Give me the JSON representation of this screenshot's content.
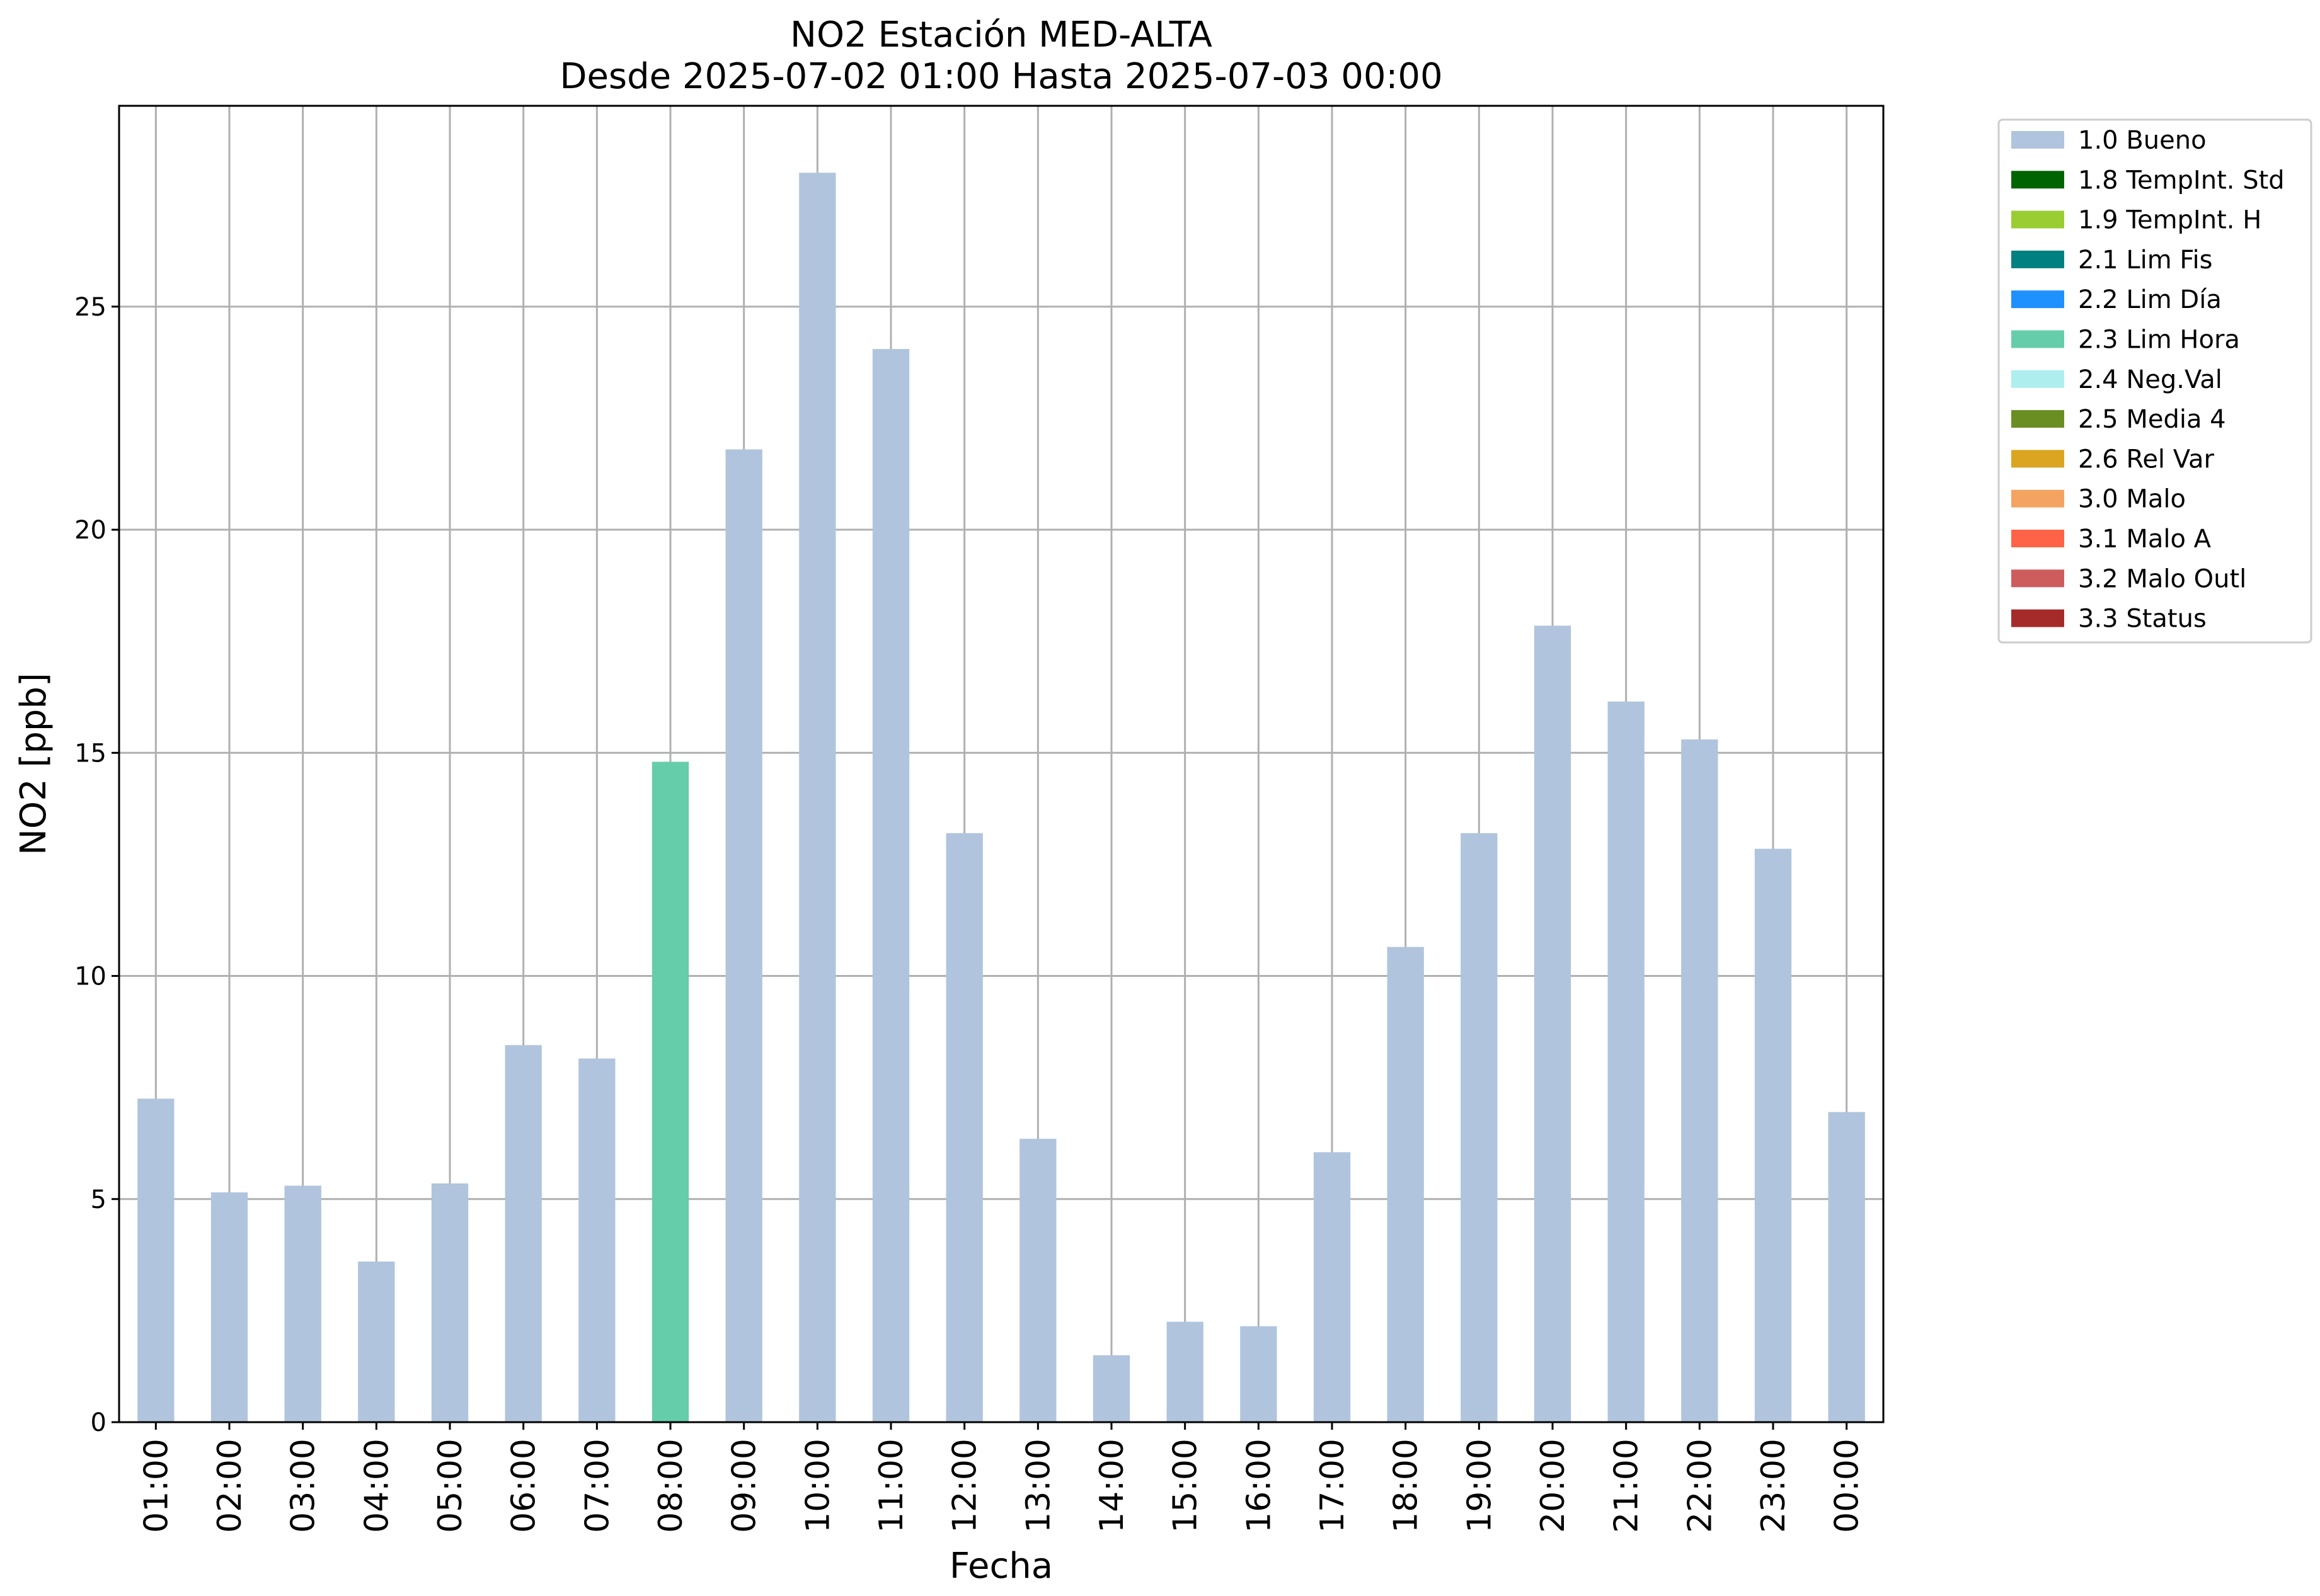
{
  "chart_data": {
    "type": "bar",
    "title": "NO2 Estación MED-ALTA",
    "subtitle": "Desde 2025-07-02 01:00 Hasta 2025-07-03 00:00",
    "xlabel": "Fecha",
    "ylabel": "NO2 [ppb]",
    "ylim": [
      0,
      29.5
    ],
    "yticks": [
      0,
      5,
      10,
      15,
      20,
      25
    ],
    "grid": true,
    "legend_position": "outside-top-right",
    "categories": [
      "01:00",
      "02:00",
      "03:00",
      "04:00",
      "05:00",
      "06:00",
      "07:00",
      "08:00",
      "09:00",
      "10:00",
      "11:00",
      "12:00",
      "13:00",
      "14:00",
      "15:00",
      "16:00",
      "17:00",
      "18:00",
      "19:00",
      "20:00",
      "21:00",
      "22:00",
      "23:00",
      "00:00"
    ],
    "values": [
      7.25,
      5.15,
      5.3,
      3.6,
      5.35,
      8.45,
      8.15,
      14.8,
      21.8,
      28.0,
      24.05,
      13.2,
      6.35,
      1.5,
      2.25,
      2.15,
      6.05,
      10.65,
      13.2,
      17.85,
      16.15,
      15.3,
      12.85,
      6.95
    ],
    "flags": [
      "1.0 Bueno",
      "1.0 Bueno",
      "1.0 Bueno",
      "1.0 Bueno",
      "1.0 Bueno",
      "1.0 Bueno",
      "1.0 Bueno",
      "2.3 Lim Hora",
      "1.0 Bueno",
      "1.0 Bueno",
      "1.0 Bueno",
      "1.0 Bueno",
      "1.0 Bueno",
      "1.0 Bueno",
      "1.0 Bueno",
      "1.0 Bueno",
      "1.0 Bueno",
      "1.0 Bueno",
      "1.0 Bueno",
      "1.0 Bueno",
      "1.0 Bueno",
      "1.0 Bueno",
      "1.0 Bueno",
      "1.0 Bueno"
    ],
    "legend": [
      {
        "label": "1.0 Bueno",
        "color": "#b0c4de"
      },
      {
        "label": "1.8 TempInt. Std",
        "color": "#006400"
      },
      {
        "label": "1.9 TempInt. H",
        "color": "#9acd32"
      },
      {
        "label": "2.1 Lim Fis",
        "color": "#008080"
      },
      {
        "label": "2.2 Lim Día",
        "color": "#1e90ff"
      },
      {
        "label": "2.3 Lim Hora",
        "color": "#66cdaa"
      },
      {
        "label": "2.4 Neg.Val",
        "color": "#afeeee"
      },
      {
        "label": "2.5 Media 4",
        "color": "#6b8e23"
      },
      {
        "label": "2.6 Rel Var",
        "color": "#daa520"
      },
      {
        "label": "3.0 Malo",
        "color": "#f4a460"
      },
      {
        "label": "3.1 Malo A",
        "color": "#ff6347"
      },
      {
        "label": "3.2 Malo Outl",
        "color": "#cd5c5c"
      },
      {
        "label": "3.3 Status",
        "color": "#a52a2a"
      }
    ]
  }
}
